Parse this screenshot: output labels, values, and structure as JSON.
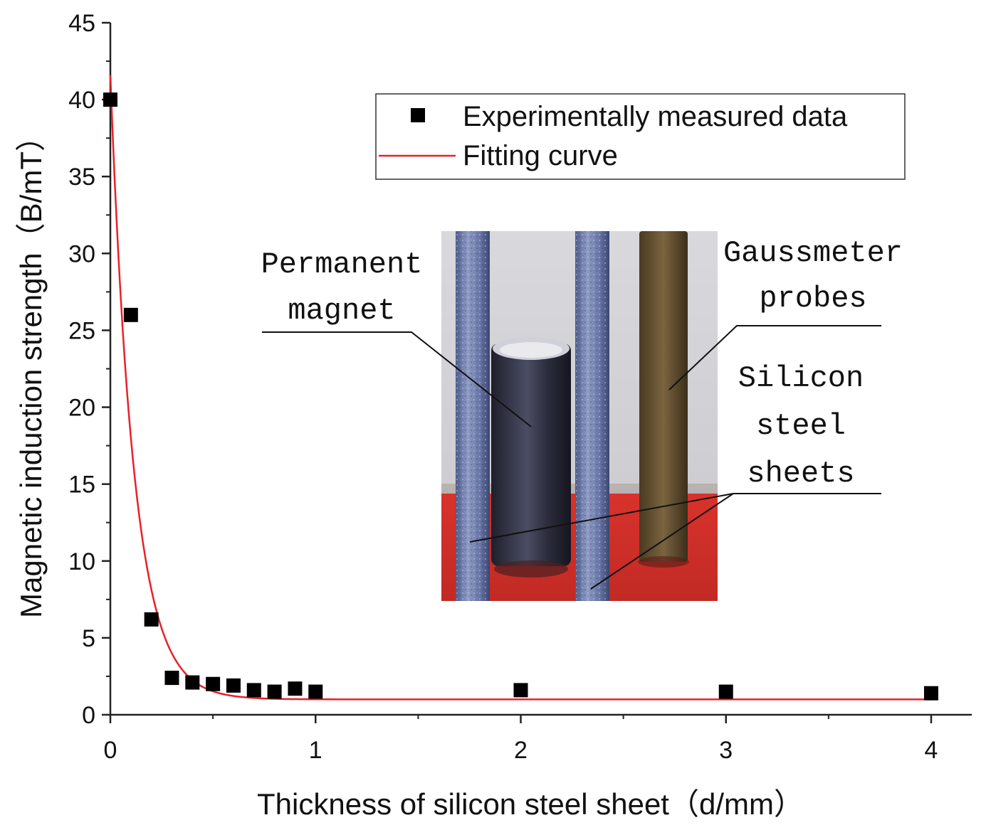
{
  "chart_data": {
    "type": "scatter",
    "title": "",
    "xlabel": "Thickness of silicon steel sheet（d/mm）",
    "ylabel": "Magnetic induction strength（B/mT）",
    "xlim": [
      0,
      4.2
    ],
    "ylim": [
      0,
      45
    ],
    "x_ticks": [
      0,
      1,
      2,
      3,
      4
    ],
    "y_ticks": [
      0,
      5,
      10,
      15,
      20,
      25,
      30,
      35,
      40,
      45
    ],
    "x_tick_labels": [
      "0",
      "1",
      "2",
      "3",
      "4"
    ],
    "y_tick_labels": [
      "0",
      "5",
      "10",
      "15",
      "20",
      "25",
      "30",
      "35",
      "40",
      "45"
    ],
    "series": [
      {
        "name": "Experimentally measured data",
        "marker": "square",
        "color": "#000000",
        "x": [
          0,
          0.1,
          0.2,
          0.3,
          0.4,
          0.5,
          0.6,
          0.7,
          0.8,
          0.9,
          1.0,
          2.0,
          3.0,
          4.0
        ],
        "y": [
          40,
          26,
          6.2,
          2.4,
          2.1,
          2.0,
          1.9,
          1.6,
          1.5,
          1.7,
          1.5,
          1.6,
          1.5,
          1.4
        ]
      },
      {
        "name": "Fitting curve",
        "line": true,
        "color": "#e8202a",
        "model": "y = y0 + A*exp(-x/t)",
        "params": {
          "y0": 1.0,
          "A": 40.6,
          "t": 0.115
        },
        "x_range": [
          0,
          4
        ]
      }
    ],
    "legend_position": "top-right",
    "inset_photo": {
      "labels": {
        "magnet": [
          "Permanent",
          "magnet"
        ],
        "probe": [
          "Gaussmeter",
          "probes"
        ],
        "sheets": [
          "Silicon",
          "steel",
          "sheets"
        ]
      }
    }
  },
  "colors": {
    "background": "#ffffff",
    "axis": "#222222",
    "fit_line": "#e8202a",
    "marker": "#000000",
    "legend_border": "#333333"
  }
}
